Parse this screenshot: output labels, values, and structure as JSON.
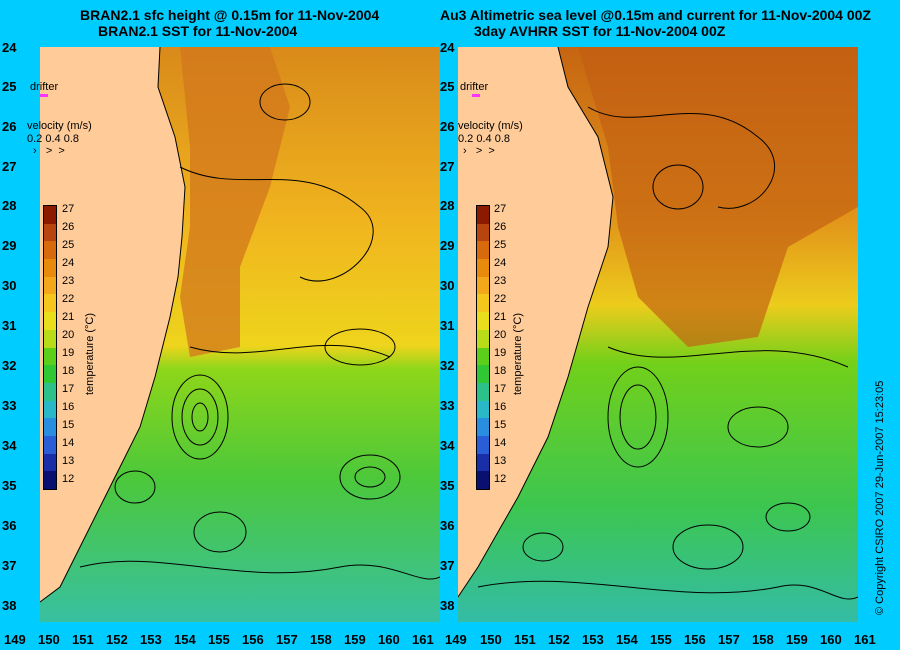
{
  "titles": {
    "left_line1": "BRAN2.1 sfc height @ 0.15m for 11-Nov-2004",
    "left_line2": "BRAN2.1 SST for 11-Nov-2004",
    "right_line1": "Au3 Altimetric sea level  @0.15m and current for 11-Nov-2004 00Z",
    "right_line2": "3day AVHRR SST for 11-Nov-2004 00Z"
  },
  "lat_ticks": [
    "24",
    "25",
    "26",
    "27",
    "28",
    "29",
    "30",
    "31",
    "32",
    "33",
    "34",
    "35",
    "36",
    "37",
    "38"
  ],
  "lon_ticks_left": [
    "149",
    "150",
    "151",
    "152",
    "153",
    "154",
    "155",
    "156",
    "157",
    "158",
    "159",
    "160",
    "161"
  ],
  "lon_ticks_right": [
    "149",
    "150",
    "151",
    "152",
    "153",
    "154",
    "155",
    "156",
    "157",
    "158",
    "159",
    "160",
    "161"
  ],
  "labels": {
    "drifter": "drifter",
    "velocity": "velocity (m/s)",
    "velocity_scale": "0.2  0.4  0.8",
    "temperature_axis": "temperature (°C)",
    "copyright": "© Copyright CSIRO 2007    29-Jun-2007 15:23:05"
  },
  "colorbar": {
    "ticks": [
      "27",
      "26",
      "25",
      "24",
      "23",
      "22",
      "21",
      "20",
      "19",
      "18",
      "17",
      "16",
      "15",
      "14",
      "13",
      "12"
    ],
    "colors": [
      "#8b1a00",
      "#b8450d",
      "#d66a0c",
      "#e88a0c",
      "#f2a81a",
      "#f5c61c",
      "#e8de1c",
      "#b8dc18",
      "#5ccf1a",
      "#2fc832",
      "#2cc08a",
      "#28b8c8",
      "#2a8ee0",
      "#2a5ed6",
      "#1a2ea8",
      "#0a1070"
    ]
  },
  "colors": {
    "background": "#00ccff",
    "land": "#ffcc99",
    "drifter": "#ff33ff"
  },
  "map_data": {
    "lon_range": [
      149,
      161
    ],
    "lat_range": [
      24,
      38.4
    ],
    "drifter_marker": {
      "lon": 149.4,
      "lat": 25.2
    }
  }
}
